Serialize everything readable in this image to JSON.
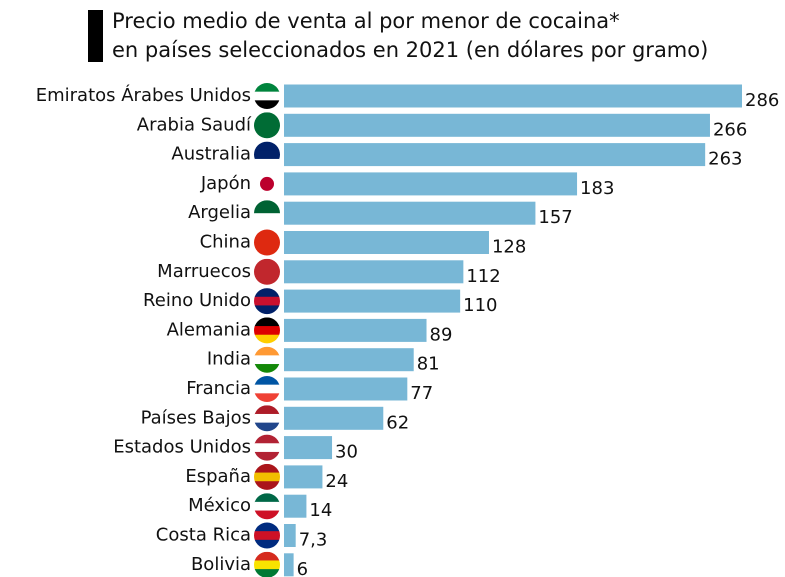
{
  "chart_data": {
    "type": "bar",
    "orientation": "horizontal",
    "title": [
      "Precio medio de venta al por menor de cocaina*",
      "en países seleccionados en 2021 (en dólares por gramo)"
    ],
    "categories": [
      "Emiratos Árabes Unidos",
      "Arabia Saudí",
      "Australia",
      "Japón",
      "Argelia",
      "China",
      "Marruecos",
      "Reino Unido",
      "Alemania",
      "India",
      "Francia",
      "Países Bajos",
      "Estados Unidos",
      "España",
      "México",
      "Costa Rica",
      "Bolivia"
    ],
    "values": [
      286,
      266,
      263,
      183,
      157,
      128,
      112,
      110,
      89,
      81,
      77,
      62,
      30,
      24,
      14,
      7.3,
      6
    ],
    "value_labels": [
      "286",
      "266",
      "263",
      "183",
      "157",
      "128",
      "112",
      "110",
      "89",
      "81",
      "77",
      "62",
      "30",
      "24",
      "14",
      "7,3",
      "6"
    ],
    "color": "#78b7d6"
  }
}
